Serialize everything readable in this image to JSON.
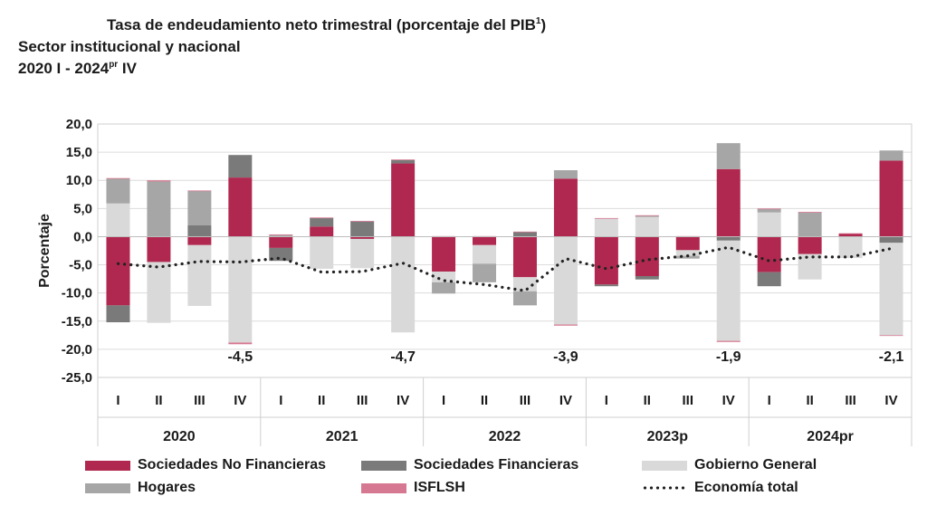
{
  "title": {
    "line1": "Tasa de endeudamiento neto trimestral (porcentaje del PIB",
    "line1_sup": "1",
    "line1_end": ")",
    "line2": "Sector institucional y nacional",
    "line3_a": "2020 I - 2024",
    "line3_sup": "pr",
    "line3_b": " IV"
  },
  "chart_data": {
    "type": "bar",
    "stacked": true,
    "ylabel": "Porcentaje",
    "ylim": [
      -25,
      20
    ],
    "yticks": [
      "20,0",
      "15,0",
      "10,0",
      "5,0",
      "0,0",
      "-5,0",
      "-10,0",
      "-15,0",
      "-20,0",
      "-25,0"
    ],
    "ytick_values": [
      20,
      15,
      10,
      5,
      0,
      -5,
      -10,
      -15,
      -20,
      -25
    ],
    "categories": [
      "I",
      "II",
      "III",
      "IV",
      "I",
      "II",
      "III",
      "IV",
      "I",
      "II",
      "III",
      "IV",
      "I",
      "II",
      "III",
      "IV",
      "I",
      "II",
      "III",
      "IV"
    ],
    "years": [
      "2020",
      "2021",
      "2022",
      "2023p",
      "2024pr"
    ],
    "series": [
      {
        "name": "Sociedades No Financieras",
        "color": "#b0284f",
        "values": [
          -12.2,
          -4.5,
          -1.5,
          10.5,
          -2.0,
          1.8,
          -0.4,
          13.0,
          -6.2,
          -1.5,
          -7.2,
          10.3,
          -8.5,
          -7.0,
          -2.4,
          12.0,
          -6.3,
          -3.1,
          0.5,
          13.5
        ]
      },
      {
        "name": "Sociedades Financieras",
        "color": "#7a7a7a",
        "values": [
          -3.0,
          0.0,
          2.0,
          4.0,
          -2.3,
          1.5,
          2.7,
          0.6,
          0.0,
          0.0,
          0.8,
          0.0,
          -0.3,
          -0.6,
          0.0,
          -0.7,
          -2.5,
          0.0,
          0.0,
          -1.1
        ]
      },
      {
        "name": "Gobierno General",
        "color": "#d9d9d9",
        "values": [
          5.9,
          -10.8,
          -10.8,
          -18.8,
          0.0,
          -5.7,
          -5.2,
          -17.0,
          -1.9,
          -3.3,
          -2.5,
          -15.6,
          3.2,
          3.5,
          -1.0,
          -17.8,
          4.3,
          -4.5,
          -3.8,
          -16.4
        ]
      },
      {
        "name": "Hogares",
        "color": "#a6a6a6",
        "values": [
          4.4,
          9.8,
          6.1,
          0.0,
          0.3,
          0.0,
          0.0,
          0.0,
          -2.0,
          -3.3,
          -2.5,
          1.5,
          0.0,
          0.2,
          -0.5,
          4.6,
          0.6,
          4.3,
          0.0,
          1.8
        ]
      },
      {
        "name": "ISFLSH",
        "color": "#d67891",
        "values": [
          0.1,
          0.2,
          0.1,
          -0.3,
          0.1,
          0.1,
          0.1,
          0.1,
          0.1,
          0.1,
          0.1,
          -0.2,
          0.1,
          0.1,
          0.1,
          -0.2,
          0.1,
          0.1,
          0.1,
          -0.1
        ]
      }
    ],
    "line_series": {
      "name": "Economía total",
      "style": "dotted",
      "color": "#222222",
      "values": [
        -4.8,
        -5.4,
        -4.4,
        -4.5,
        -3.8,
        -6.3,
        -6.2,
        -4.7,
        -7.8,
        -8.5,
        -9.6,
        -3.9,
        -5.7,
        -4.1,
        -3.4,
        -1.9,
        -4.3,
        -3.6,
        -3.6,
        -2.1
      ]
    },
    "annotations": [
      {
        "index": 3,
        "label": "-4,5"
      },
      {
        "index": 7,
        "label": "-4,7"
      },
      {
        "index": 11,
        "label": "-3,9"
      },
      {
        "index": 15,
        "label": "-1,9"
      },
      {
        "index": 19,
        "label": "-2,1"
      }
    ]
  }
}
